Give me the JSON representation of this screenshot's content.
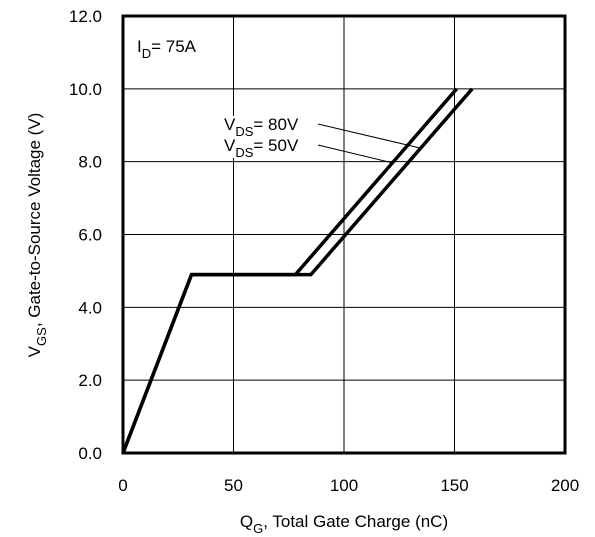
{
  "chart_data": {
    "type": "line",
    "xlabel": {
      "main": "Q",
      "sub": "G",
      "rest": ",  Total Gate Charge (nC)"
    },
    "ylabel": {
      "main": "V",
      "sub": "GS",
      "rest": ", Gate-to-Source Voltage (V)"
    },
    "xlim": [
      0,
      200
    ],
    "ylim": [
      0,
      12
    ],
    "x_ticks": [
      "0",
      "50",
      "100",
      "150",
      "200"
    ],
    "y_ticks": [
      "0.0",
      "2.0",
      "4.0",
      "6.0",
      "8.0",
      "10.0",
      "12.0"
    ],
    "grid": true,
    "condition": {
      "main": "I",
      "sub": "D",
      "rest": "= 75A"
    },
    "series": [
      {
        "name": {
          "main": "V",
          "sub": "DS",
          "rest": "= 80V"
        },
        "points": [
          [
            0,
            0
          ],
          [
            31,
            4.9
          ],
          [
            85,
            4.9
          ],
          [
            158,
            10.0
          ]
        ]
      },
      {
        "name": {
          "main": "V",
          "sub": "DS",
          "rest": "= 50V"
        },
        "points": [
          [
            0,
            0
          ],
          [
            31,
            4.9
          ],
          [
            78,
            4.9
          ],
          [
            151,
            10.0
          ]
        ]
      }
    ],
    "line_color": "#000000"
  }
}
